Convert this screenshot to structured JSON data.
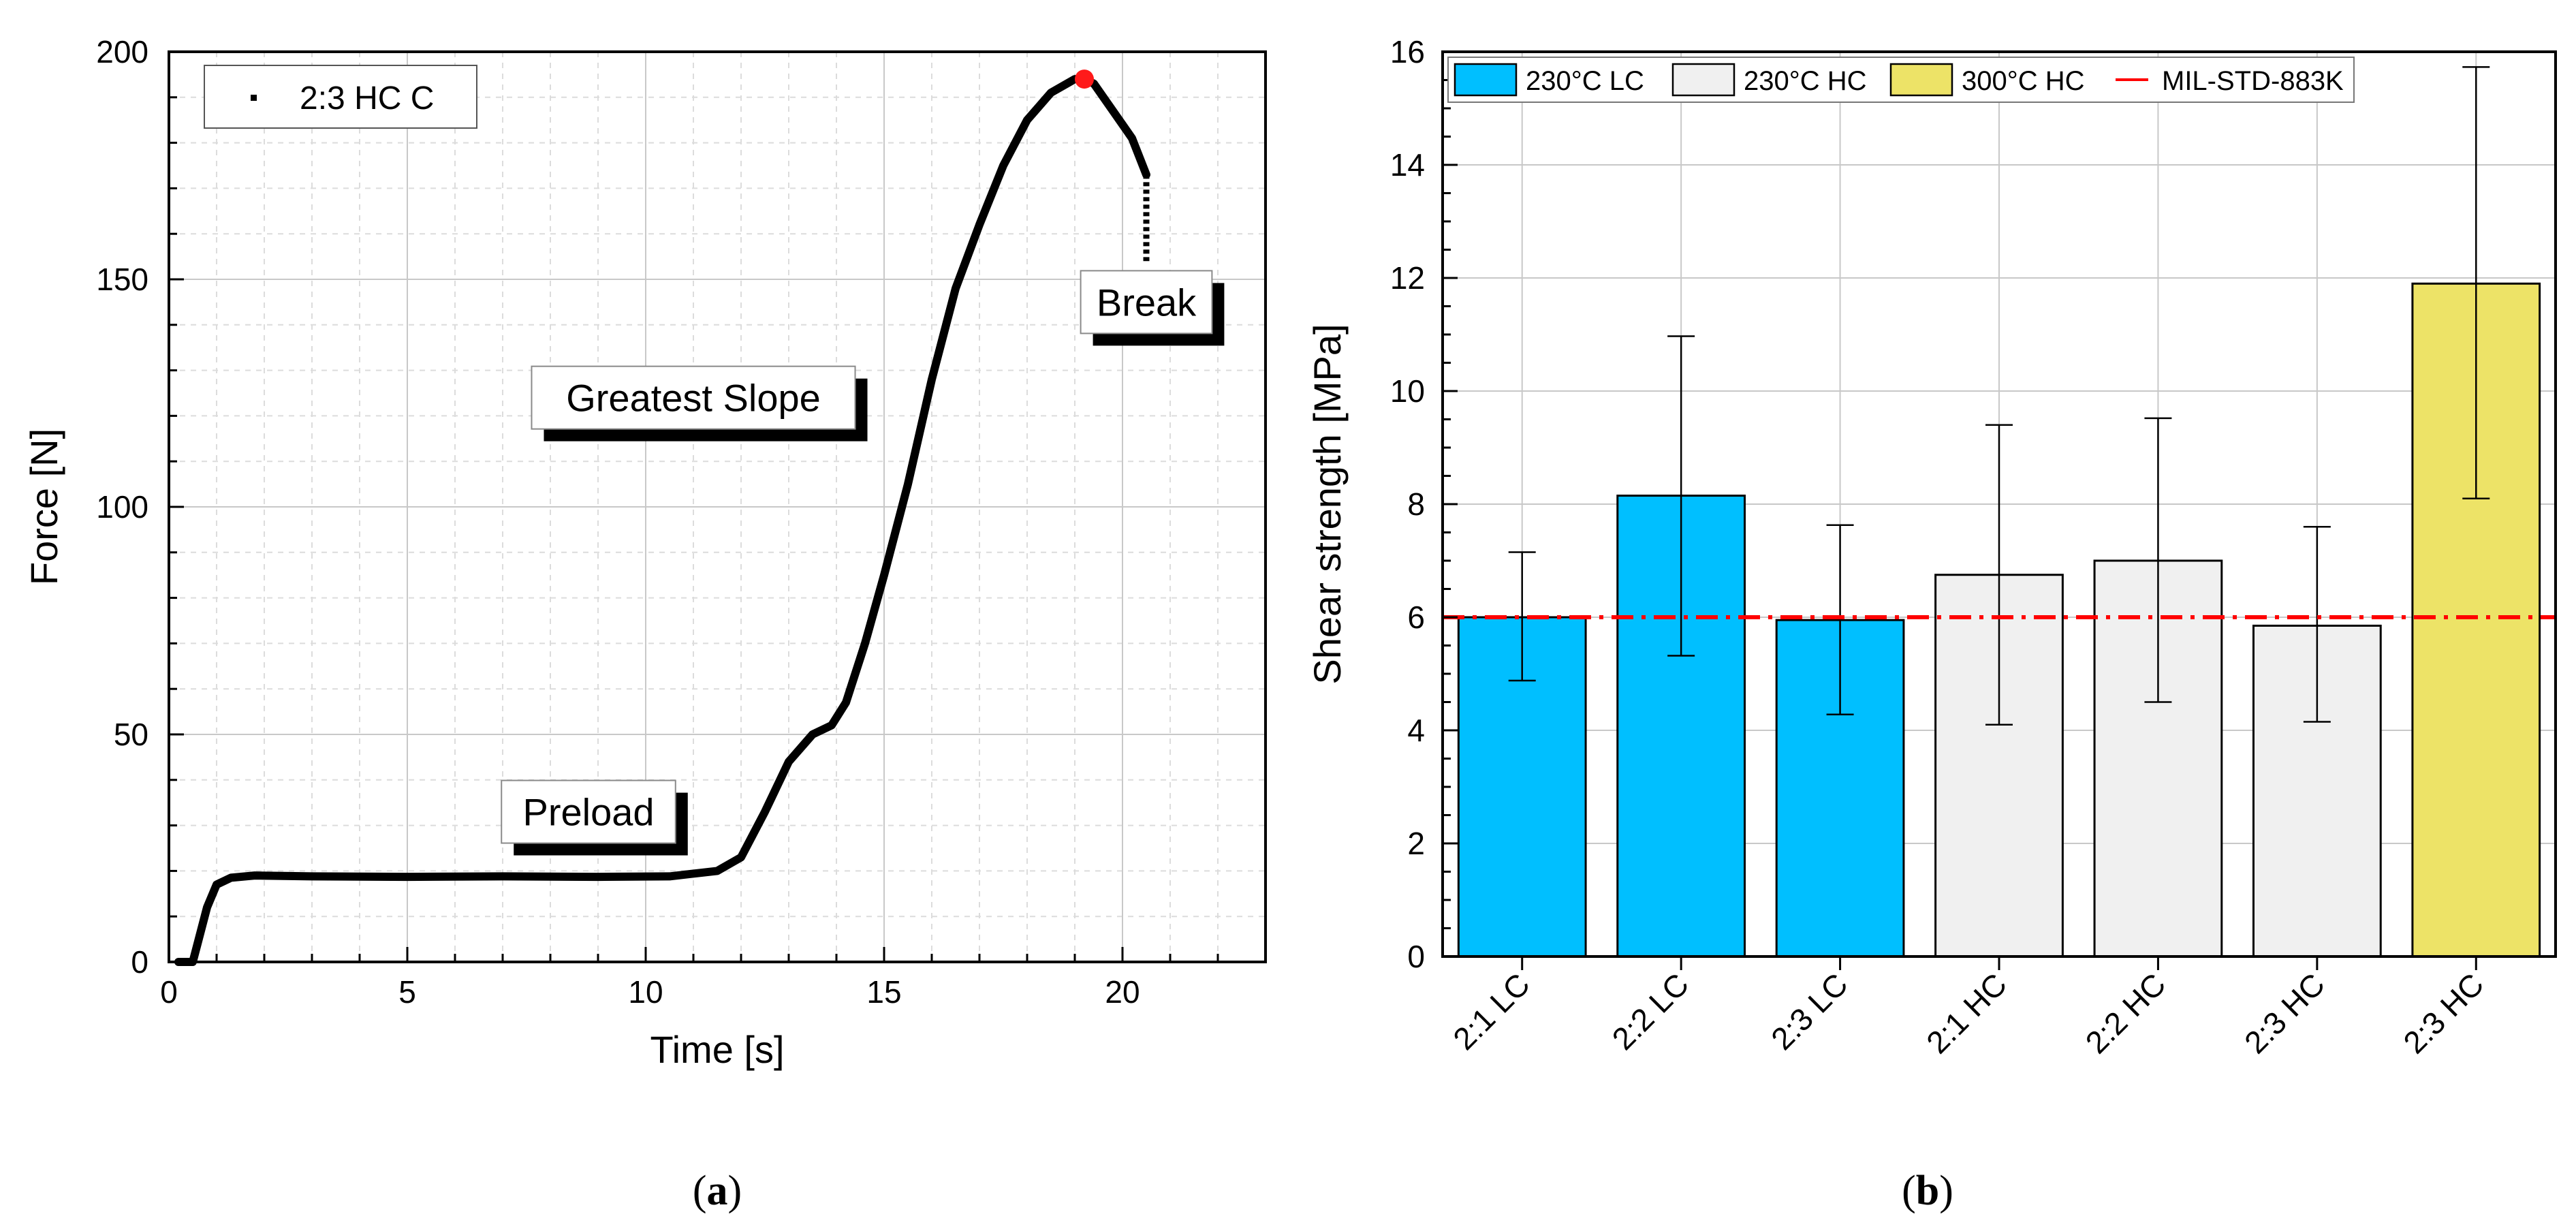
{
  "chart_data": [
    {
      "type": "line",
      "panel_label": "a",
      "xlabel": "Time [s]",
      "ylabel": "Force [N]",
      "xlim": [
        0,
        23
      ],
      "ylim": [
        0,
        200
      ],
      "xticks": [
        "0",
        "5",
        "10",
        "15",
        "20"
      ],
      "yticks": [
        "0",
        "50",
        "100",
        "150",
        "200"
      ],
      "legend": "2:3 HC C",
      "grid": true,
      "series": [
        {
          "name": "2:3 HC C",
          "x": [
            0.2,
            0.5,
            0.6,
            0.8,
            1.0,
            1.3,
            1.8,
            3,
            5,
            7,
            9,
            10.5,
            11.5,
            12.0,
            12.5,
            13.0,
            13.5,
            13.9,
            14.2,
            14.6,
            15.0,
            15.5,
            16.0,
            16.5,
            17.0,
            17.5,
            18.0,
            18.5,
            19.0,
            19.2,
            19.4,
            19.8,
            20.2,
            20.5
          ],
          "y": [
            0,
            0,
            4,
            12,
            17,
            18.5,
            19,
            18.8,
            18.7,
            18.8,
            18.7,
            18.8,
            20,
            23,
            33,
            44,
            50,
            52,
            57,
            70,
            85,
            105,
            128,
            148,
            162,
            175,
            185,
            191,
            194,
            194,
            193,
            187,
            181,
            173
          ]
        }
      ],
      "break_drop": {
        "x": 20.5,
        "y_from": 173,
        "y_to": 154
      },
      "max_point": {
        "x": 19.2,
        "y": 194
      },
      "annotations": [
        {
          "text": "Greatest Slope",
          "x": 11.0,
          "y": 124
        },
        {
          "text": "Preload",
          "x": 8.8,
          "y": 33
        },
        {
          "text": "Break",
          "x": 20.5,
          "y": 145
        }
      ]
    },
    {
      "type": "bar",
      "panel_label": "b",
      "xlabel": "",
      "ylabel": "Shear strength [MPa]",
      "ylim": [
        0,
        16
      ],
      "yticks": [
        "0",
        "2",
        "4",
        "6",
        "8",
        "10",
        "12",
        "14",
        "16"
      ],
      "categories": [
        "2:1 LC",
        "2:2 LC",
        "2:3 LC",
        "2:1 HC",
        "2:2 HC",
        "2:3 HC",
        "2:3 HC"
      ],
      "values": [
        6.0,
        8.15,
        5.95,
        6.75,
        7.0,
        5.85,
        11.9
      ],
      "error_low": [
        4.88,
        5.32,
        4.28,
        4.1,
        4.5,
        4.15,
        8.1
      ],
      "error_high": [
        7.15,
        10.97,
        7.63,
        9.4,
        9.52,
        7.6,
        15.73
      ],
      "bar_groups": [
        "230°C LC",
        "230°C LC",
        "230°C LC",
        "230°C HC",
        "230°C HC",
        "230°C HC",
        "300°C HC"
      ],
      "reference_line": {
        "label": "MIL-STD-883K",
        "value": 6.0
      },
      "legend": [
        "230°C LC",
        "230°C HC",
        "300°C HC",
        "MIL-STD-883K"
      ],
      "legend_colors": {
        "230°C LC": "#00bfff",
        "230°C HC": "#f0f0f0",
        "300°C HC": "#ede367"
      },
      "line_color": "#ff0000",
      "grid": true
    }
  ]
}
